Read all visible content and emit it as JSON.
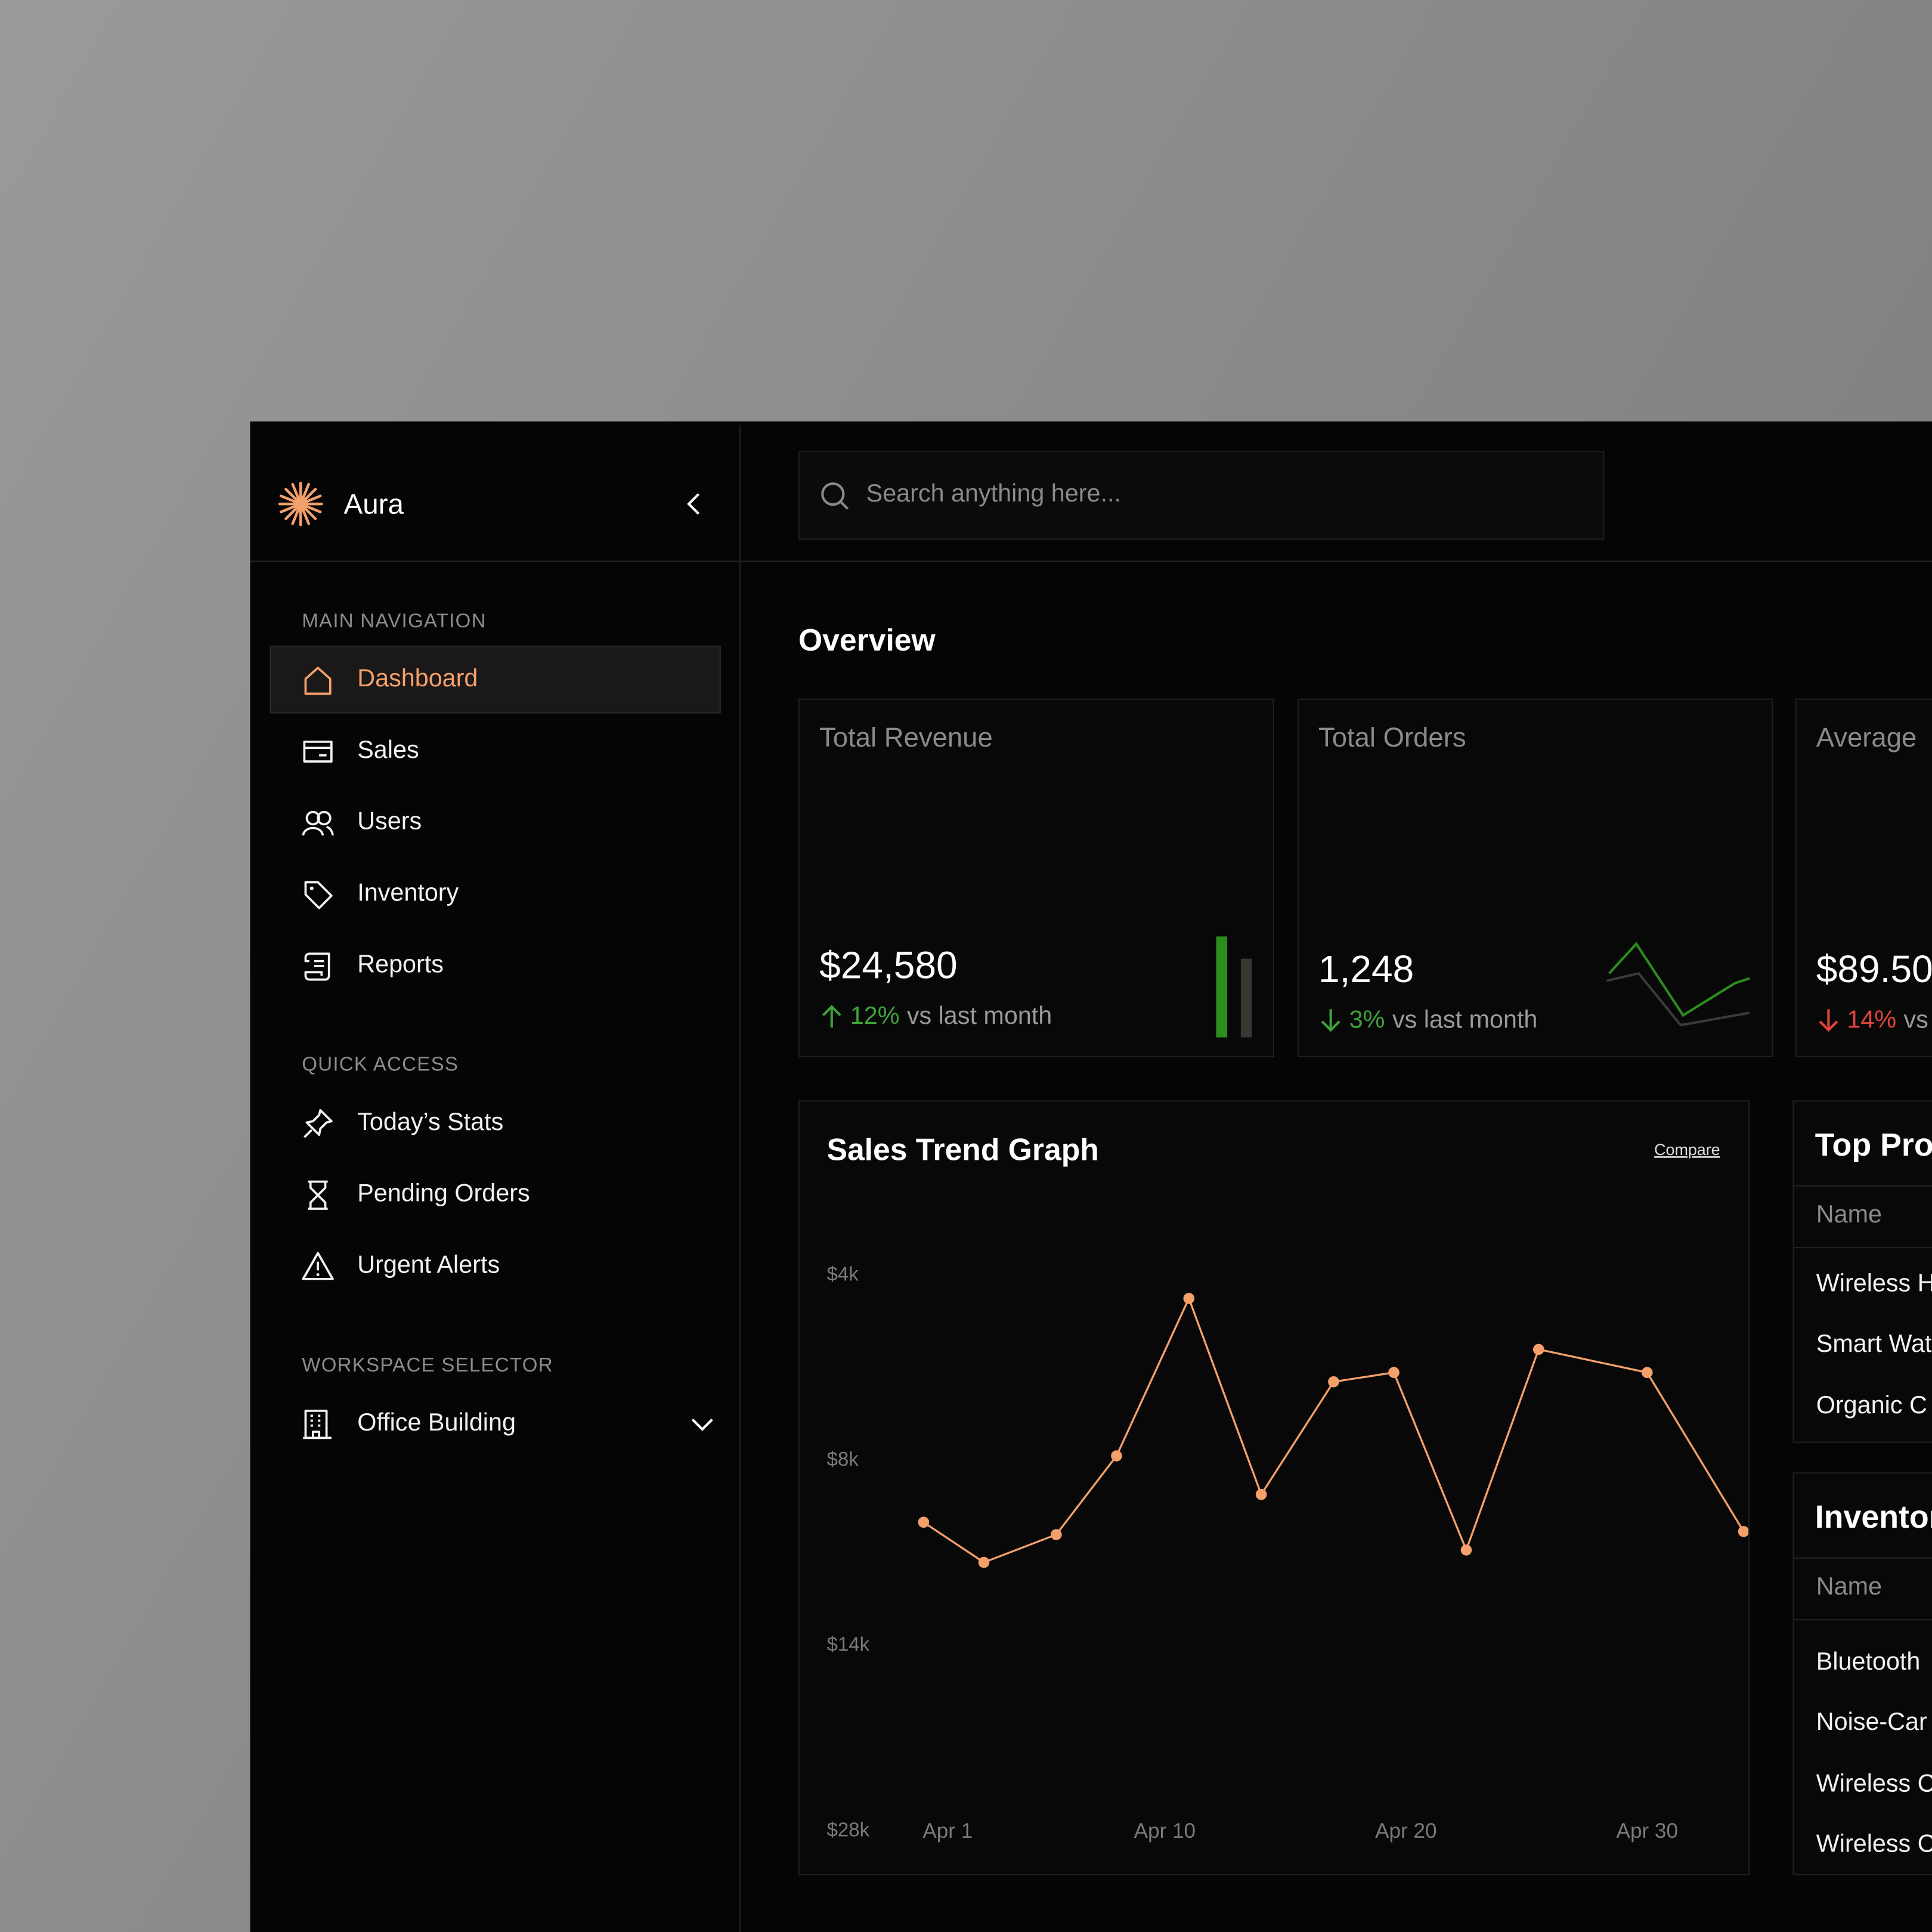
{
  "sidebar": {
    "brand": "Aura",
    "sections": [
      {
        "title": "MAIN NAVIGATION",
        "items": [
          "Dashboard",
          "Sales",
          "Users",
          "Inventory",
          "Reports"
        ]
      },
      {
        "title": "QUICK ACCESS",
        "items": [
          "Today’s Stats",
          "Pending Orders",
          "Urgent Alerts"
        ]
      },
      {
        "title": "WORKSPACE SELECTOR",
        "items": [
          "Office Building"
        ]
      }
    ]
  },
  "search": {
    "placeholder": "Search anything here..."
  },
  "overview": {
    "title": "Overview",
    "cards": [
      {
        "label": "Total Revenue",
        "value": "$24,580",
        "change": "12%",
        "note": "vs last month"
      },
      {
        "label": "Total Orders",
        "value": "1,248",
        "change": "3%",
        "note": "vs last month"
      },
      {
        "label": "Average",
        "value": "$89.50",
        "change": "14%",
        "note": "vs"
      }
    ]
  },
  "chart_data": {
    "type": "line",
    "title": "Sales Trend Graph",
    "action": "Compare",
    "x": [
      0,
      2.5,
      5.5,
      8,
      11,
      14,
      17,
      19.5,
      22.5,
      25.5,
      30,
      34
    ],
    "xlim": [
      -1,
      34.25
    ],
    "xticks": [
      {
        "value": 1,
        "label": "Apr 1"
      },
      {
        "value": 10,
        "label": "Apr 10"
      },
      {
        "value": 20,
        "label": "Apr 20"
      },
      {
        "value": 30,
        "label": "Apr 30"
      }
    ],
    "ylim": [
      4000,
      28000
    ],
    "yticks": [
      {
        "value": 4000,
        "label": "$4k"
      },
      {
        "value": 8000,
        "label": "$8k"
      },
      {
        "value": 14000,
        "label": "$14k"
      },
      {
        "value": 28000,
        "label": "$28k"
      }
    ],
    "series": [
      {
        "color": "#f4a06b",
        "values": [
          10000,
          11300,
          10400,
          7900,
          4500,
          9100,
          6300,
          6100,
          10900,
          5600,
          6100,
          10300
        ]
      }
    ]
  },
  "top_products": {
    "title": "Top Pro",
    "header": "Name",
    "rows": [
      "Wireless H",
      "Smart Wat",
      "Organic C"
    ]
  },
  "inventory": {
    "title": "Inventor",
    "header": "Name",
    "rows": [
      "Bluetooth",
      "Noise-Car",
      "Wireless C",
      "Wireless C"
    ]
  }
}
